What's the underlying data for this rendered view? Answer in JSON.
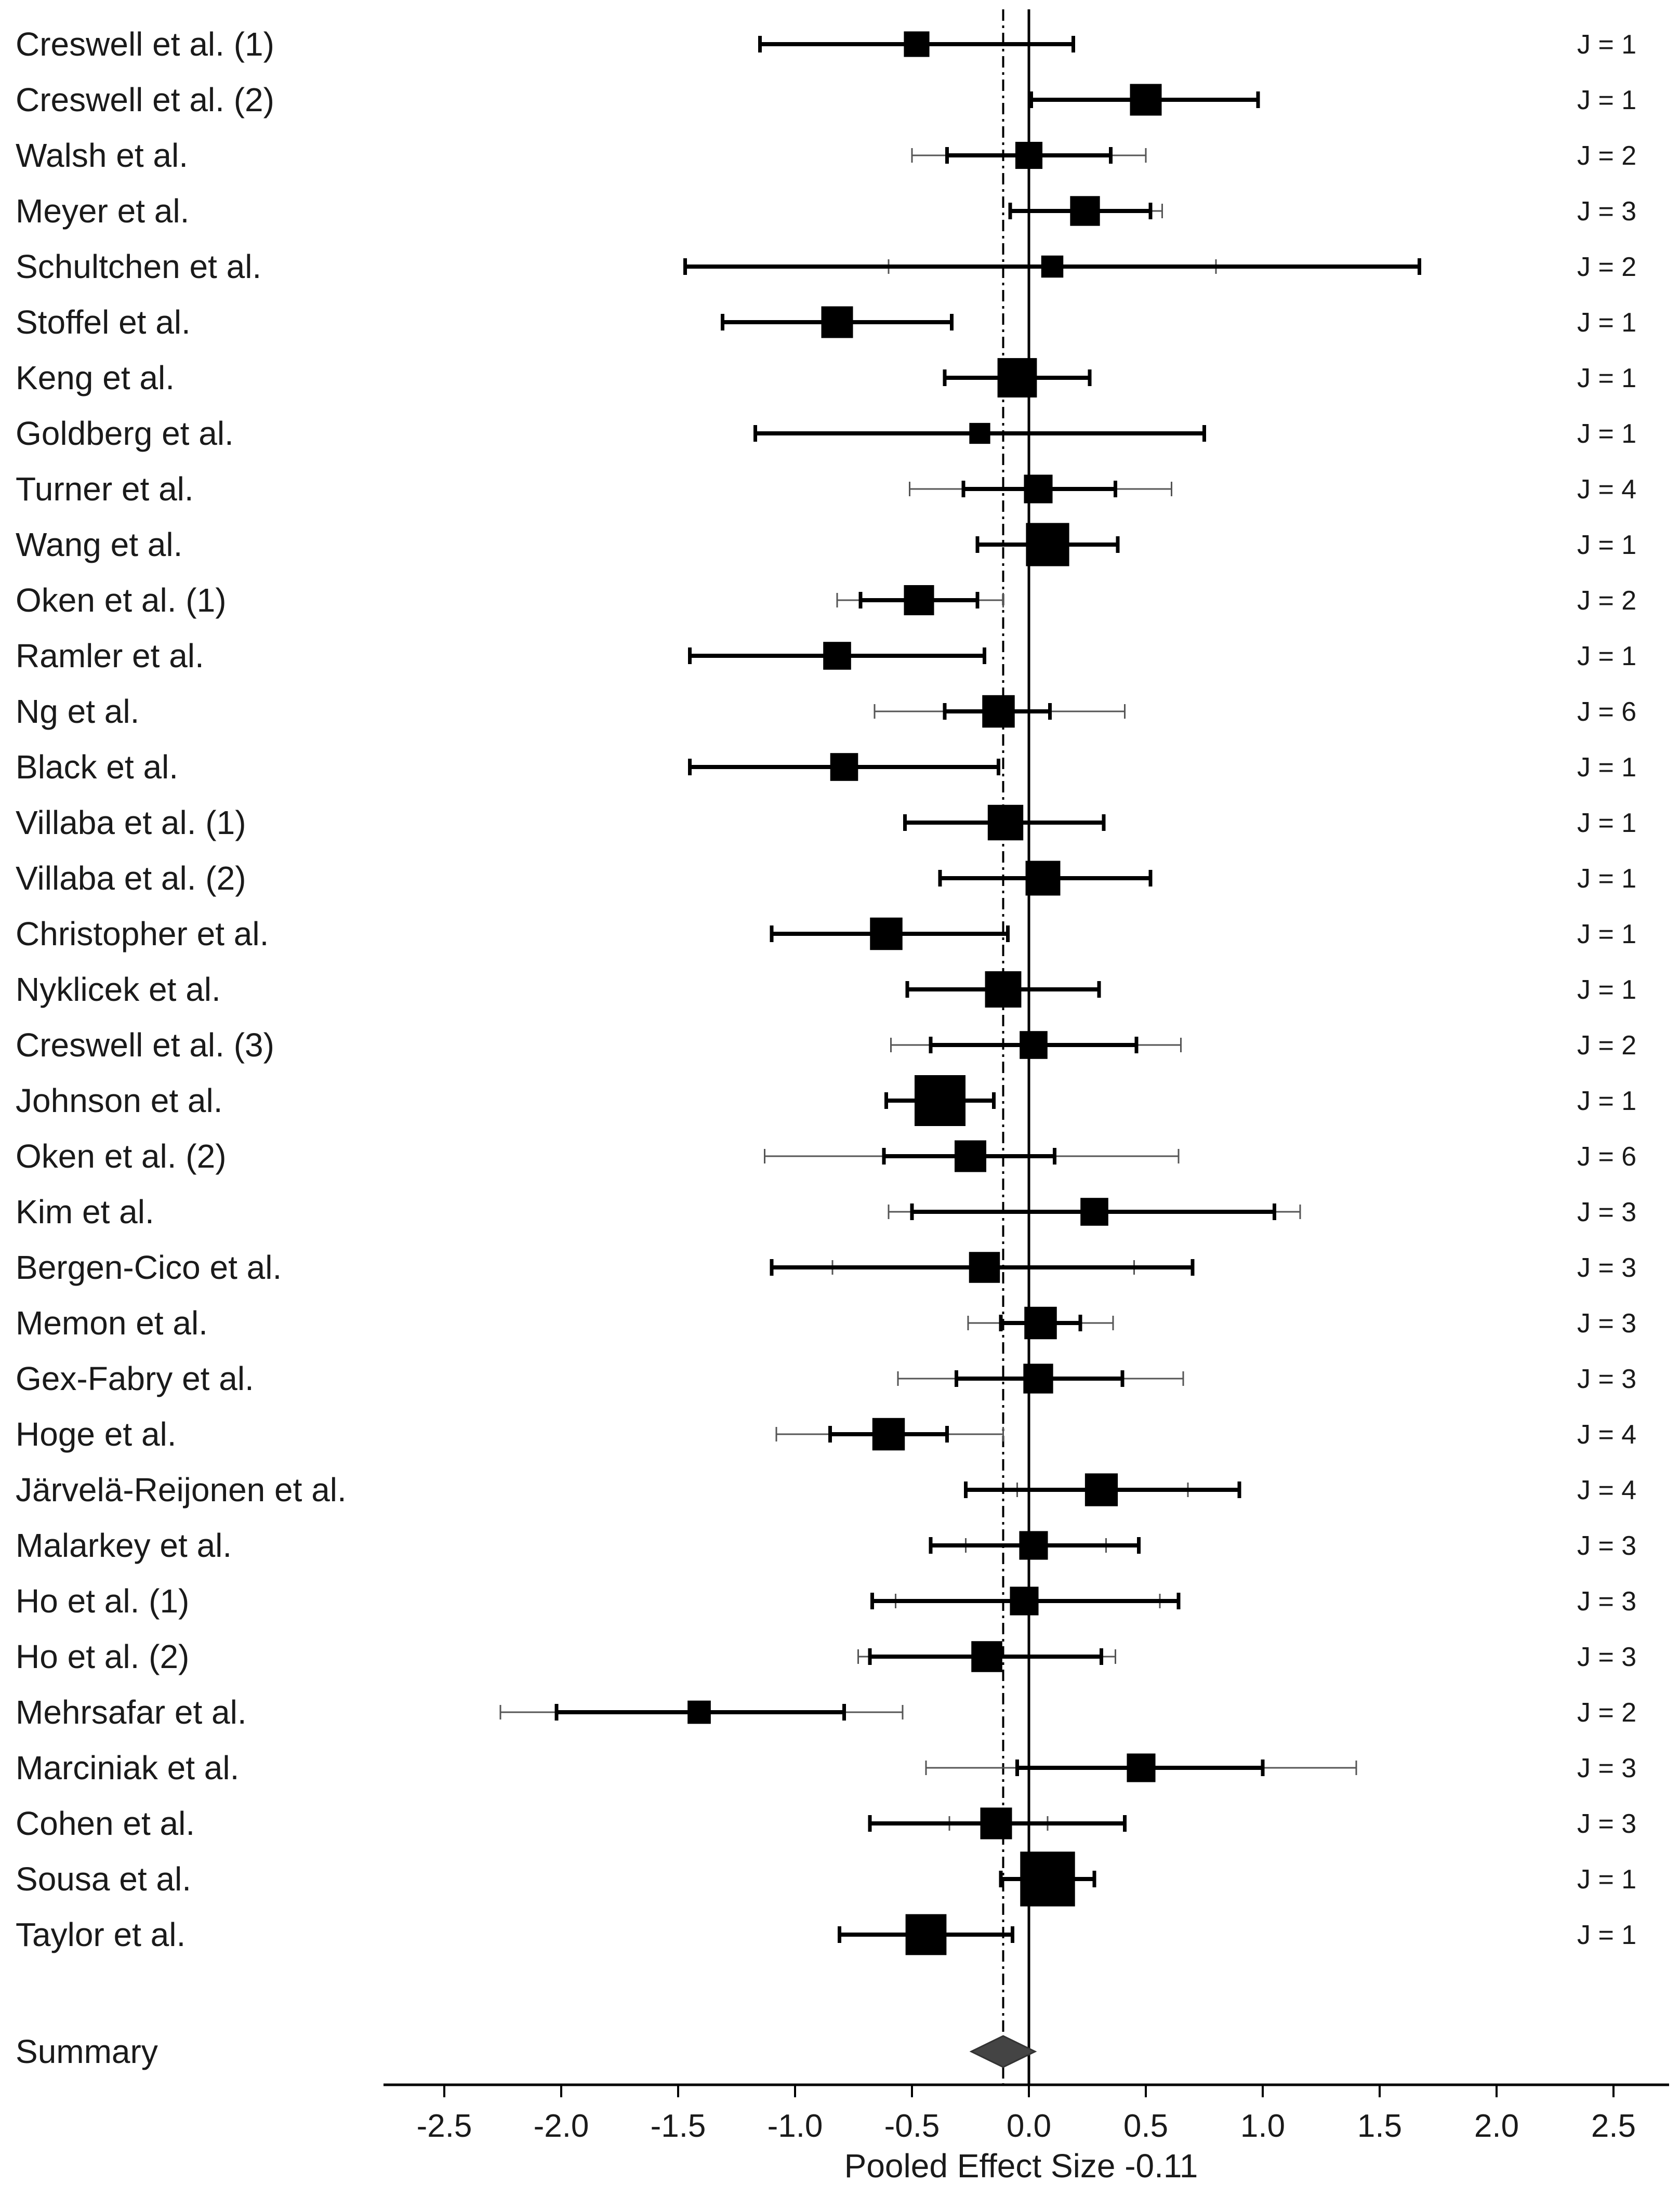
{
  "chart_data": {
    "type": "forest",
    "xlabel": "Pooled Effect Size -0.11",
    "xlim": [
      -2.7,
      2.7
    ],
    "ticks": [
      -2.5,
      -2.0,
      -1.5,
      -1.0,
      -0.5,
      0.0,
      0.5,
      1.0,
      1.5,
      2.0,
      2.5
    ],
    "tick_labels": [
      "-2.5",
      "-2.0",
      "-1.5",
      "-1.0",
      "-0.5",
      "0.0",
      "0.5",
      "1.0",
      "1.5",
      "2.0",
      "2.5"
    ],
    "pooled_effect": -0.11,
    "reference_line": 0.0,
    "studies": [
      {
        "name": "Creswell et al. (1)",
        "est": -0.48,
        "lo": -1.15,
        "hi": 0.19,
        "plo": -1.15,
        "phi": 0.19,
        "weight": 0.34,
        "j": "J = 1"
      },
      {
        "name": "Creswell et al. (2)",
        "est": 0.5,
        "lo": 0.01,
        "hi": 0.98,
        "plo": 0.01,
        "phi": 0.98,
        "weight": 0.5,
        "j": "J = 1"
      },
      {
        "name": "Walsh et al.",
        "est": 0.0,
        "lo": -0.35,
        "hi": 0.35,
        "plo": -0.5,
        "phi": 0.5,
        "weight": 0.38,
        "j": "J = 2"
      },
      {
        "name": "Meyer et al.",
        "est": 0.24,
        "lo": -0.08,
        "hi": 0.52,
        "plo": -0.08,
        "phi": 0.57,
        "weight": 0.45,
        "j": "J = 3"
      },
      {
        "name": "Schultchen et al.",
        "est": 0.1,
        "lo": -1.47,
        "hi": 1.67,
        "plo": -0.6,
        "phi": 0.8,
        "weight": 0.25,
        "j": "J = 2"
      },
      {
        "name": "Stoffel et al.",
        "est": -0.82,
        "lo": -1.31,
        "hi": -0.33,
        "plo": -1.31,
        "phi": -0.33,
        "weight": 0.5,
        "j": "J = 1"
      },
      {
        "name": "Keng et al.",
        "est": -0.05,
        "lo": -0.36,
        "hi": 0.26,
        "plo": -0.36,
        "phi": 0.26,
        "weight": 0.7,
        "j": "J = 1"
      },
      {
        "name": "Goldberg et al.",
        "est": -0.21,
        "lo": -1.17,
        "hi": 0.75,
        "plo": -1.17,
        "phi": 0.75,
        "weight": 0.22,
        "j": "J = 1"
      },
      {
        "name": "Turner et al.",
        "est": 0.04,
        "lo": -0.28,
        "hi": 0.37,
        "plo": -0.51,
        "phi": 0.61,
        "weight": 0.42,
        "j": "J = 4"
      },
      {
        "name": "Wang et  al.",
        "est": 0.08,
        "lo": -0.22,
        "hi": 0.38,
        "plo": -0.22,
        "phi": 0.38,
        "weight": 0.8,
        "j": "J = 1"
      },
      {
        "name": "Oken et al. (1)",
        "est": -0.47,
        "lo": -0.72,
        "hi": -0.22,
        "plo": -0.82,
        "phi": -0.11,
        "weight": 0.46,
        "j": "J = 2"
      },
      {
        "name": "Ramler et al.",
        "est": -0.82,
        "lo": -1.45,
        "hi": -0.19,
        "plo": -1.45,
        "phi": -0.19,
        "weight": 0.4,
        "j": "J = 1"
      },
      {
        "name": "Ng et al.",
        "est": -0.13,
        "lo": -0.36,
        "hi": 0.09,
        "plo": -0.66,
        "phi": 0.41,
        "weight": 0.52,
        "j": "J = 6"
      },
      {
        "name": "Black et al.",
        "est": -0.79,
        "lo": -1.45,
        "hi": -0.13,
        "plo": -1.45,
        "phi": -0.13,
        "weight": 0.4,
        "j": "J = 1"
      },
      {
        "name": "Villaba et al. (1)",
        "est": -0.1,
        "lo": -0.53,
        "hi": 0.32,
        "plo": -0.53,
        "phi": 0.32,
        "weight": 0.6,
        "j": "J = 1"
      },
      {
        "name": "Villaba et al. (2)",
        "est": 0.06,
        "lo": -0.38,
        "hi": 0.52,
        "plo": -0.38,
        "phi": 0.52,
        "weight": 0.58,
        "j": "J = 1"
      },
      {
        "name": "Christopher et al.",
        "est": -0.61,
        "lo": -1.1,
        "hi": -0.09,
        "plo": -1.1,
        "phi": -0.09,
        "weight": 0.52,
        "j": "J = 1"
      },
      {
        "name": "Nyklicek et al.",
        "est": -0.11,
        "lo": -0.52,
        "hi": 0.3,
        "plo": -0.52,
        "phi": 0.3,
        "weight": 0.62,
        "j": "J = 1"
      },
      {
        "name": "Creswell et al. (3)",
        "est": 0.02,
        "lo": -0.42,
        "hi": 0.46,
        "plo": -0.59,
        "phi": 0.65,
        "weight": 0.4,
        "j": "J = 2"
      },
      {
        "name": "Johnson et al.",
        "est": -0.38,
        "lo": -0.61,
        "hi": -0.15,
        "plo": -0.61,
        "phi": -0.15,
        "weight": 1.0,
        "j": "J = 1"
      },
      {
        "name": "Oken et al. (2)",
        "est": -0.25,
        "lo": -0.62,
        "hi": 0.11,
        "plo": -1.13,
        "phi": 0.64,
        "weight": 0.5,
        "j": "J = 6"
      },
      {
        "name": "Kim et al.",
        "est": 0.28,
        "lo": -0.5,
        "hi": 1.05,
        "plo": -0.6,
        "phi": 1.16,
        "weight": 0.4,
        "j": "J = 3"
      },
      {
        "name": "Bergen-Cico et al.",
        "est": -0.19,
        "lo": -1.1,
        "hi": 0.7,
        "plo": -0.84,
        "phi": 0.45,
        "weight": 0.48,
        "j": "J = 3"
      },
      {
        "name": "Memon et al.",
        "est": 0.05,
        "lo": -0.12,
        "hi": 0.22,
        "plo": -0.26,
        "phi": 0.36,
        "weight": 0.52,
        "j": "J = 3"
      },
      {
        "name": "Gex-Fabry et al.",
        "est": 0.04,
        "lo": -0.31,
        "hi": 0.4,
        "plo": -0.56,
        "phi": 0.66,
        "weight": 0.45,
        "j": "J = 3"
      },
      {
        "name": "Hoge et al.",
        "est": -0.6,
        "lo": -0.85,
        "hi": -0.35,
        "plo": -1.08,
        "phi": -0.11,
        "weight": 0.52,
        "j": "J = 4"
      },
      {
        "name": "Järvelä-Reijonen et al.",
        "est": 0.31,
        "lo": -0.27,
        "hi": 0.9,
        "plo": -0.05,
        "phi": 0.68,
        "weight": 0.53,
        "j": "J = 4"
      },
      {
        "name": "Malarkey et al.",
        "est": 0.02,
        "lo": -0.42,
        "hi": 0.47,
        "plo": -0.27,
        "phi": 0.33,
        "weight": 0.42,
        "j": "J = 3"
      },
      {
        "name": "Ho et al. (1)",
        "est": -0.02,
        "lo": -0.67,
        "hi": 0.64,
        "plo": -0.57,
        "phi": 0.56,
        "weight": 0.42,
        "j": "J = 3"
      },
      {
        "name": "Ho et al. (2)",
        "est": -0.18,
        "lo": -0.68,
        "hi": 0.31,
        "plo": -0.73,
        "phi": 0.37,
        "weight": 0.48,
        "j": "J = 3"
      },
      {
        "name": "Mehrsafar et al.",
        "est": -1.41,
        "lo": -2.02,
        "hi": -0.79,
        "plo": -2.26,
        "phi": -0.54,
        "weight": 0.28,
        "j": "J = 2"
      },
      {
        "name": "Marciniak et al.",
        "est": 0.48,
        "lo": -0.05,
        "hi": 1.0,
        "plo": -0.44,
        "phi": 1.4,
        "weight": 0.42,
        "j": "J = 3"
      },
      {
        "name": "Cohen et al.",
        "est": -0.14,
        "lo": -0.68,
        "hi": 0.41,
        "plo": -0.34,
        "phi": 0.08,
        "weight": 0.5,
        "j": "J = 3"
      },
      {
        "name": "Sousa et al.",
        "est": 0.08,
        "lo": -0.12,
        "hi": 0.28,
        "plo": -0.12,
        "phi": 0.28,
        "weight": 1.1,
        "j": "J = 1"
      },
      {
        "name": "Taylor et al.",
        "est": -0.44,
        "lo": -0.81,
        "hi": -0.07,
        "plo": -0.81,
        "phi": -0.07,
        "weight": 0.74,
        "j": "J = 1"
      }
    ],
    "summary": {
      "label": "Summary",
      "est": -0.11,
      "lo": -0.22,
      "hi": 0.0
    }
  }
}
